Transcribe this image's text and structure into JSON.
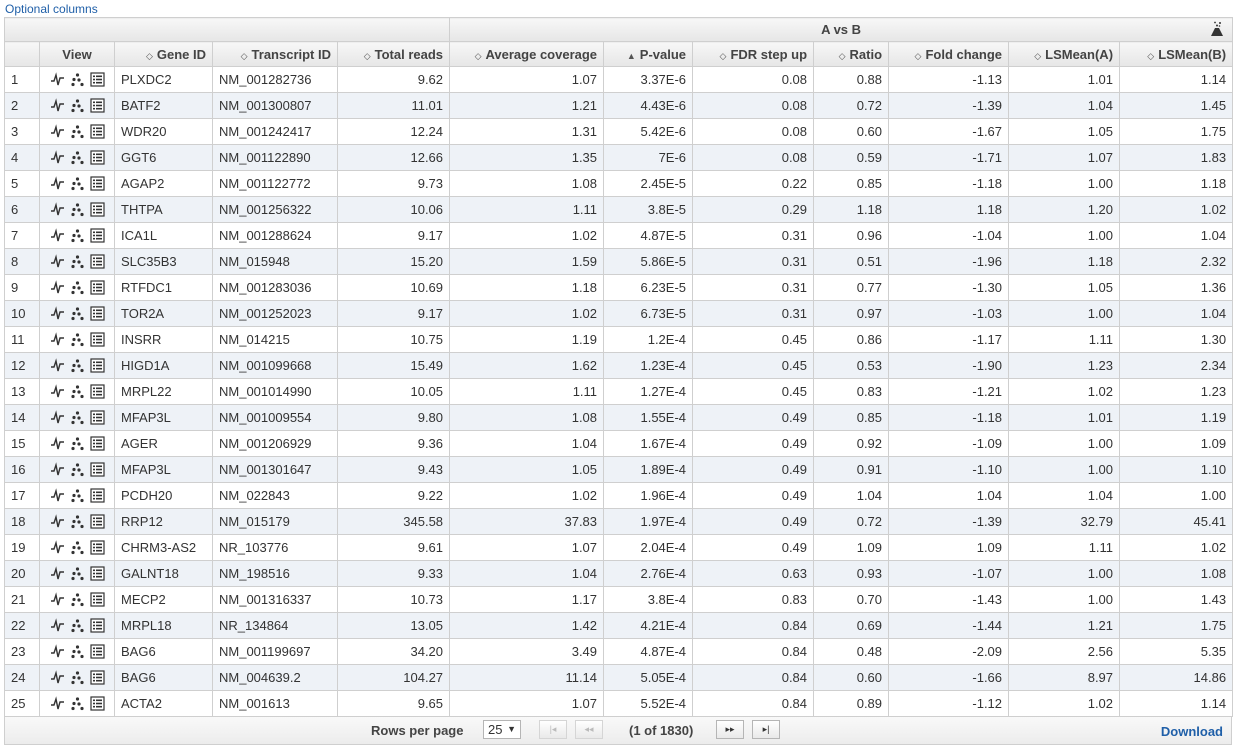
{
  "optional_columns_label": "Optional columns",
  "group_title": "A vs B",
  "columns": {
    "view": "View",
    "gene_id": "Gene ID",
    "transcript_id": "Transcript ID",
    "total_reads": "Total reads",
    "average_coverage": "Average coverage",
    "p_value": "P-value",
    "fdr": "FDR step up",
    "ratio": "Ratio",
    "fold_change": "Fold change",
    "lsmean_a": "LSMean(A)",
    "lsmean_b": "LSMean(B)"
  },
  "sort_glyphs": {
    "unsorted": "◇",
    "asc": "▲"
  },
  "rows": [
    [
      "1",
      "PLXDC2",
      "NM_001282736",
      "9.62",
      "1.07",
      "3.37E-6",
      "0.08",
      "0.88",
      "-1.13",
      "1.01",
      "1.14"
    ],
    [
      "2",
      "BATF2",
      "NM_001300807",
      "11.01",
      "1.21",
      "4.43E-6",
      "0.08",
      "0.72",
      "-1.39",
      "1.04",
      "1.45"
    ],
    [
      "3",
      "WDR20",
      "NM_001242417",
      "12.24",
      "1.31",
      "5.42E-6",
      "0.08",
      "0.60",
      "-1.67",
      "1.05",
      "1.75"
    ],
    [
      "4",
      "GGT6",
      "NM_001122890",
      "12.66",
      "1.35",
      "7E-6",
      "0.08",
      "0.59",
      "-1.71",
      "1.07",
      "1.83"
    ],
    [
      "5",
      "AGAP2",
      "NM_001122772",
      "9.73",
      "1.08",
      "2.45E-5",
      "0.22",
      "0.85",
      "-1.18",
      "1.00",
      "1.18"
    ],
    [
      "6",
      "THTPA",
      "NM_001256322",
      "10.06",
      "1.11",
      "3.8E-5",
      "0.29",
      "1.18",
      "1.18",
      "1.20",
      "1.02"
    ],
    [
      "7",
      "ICA1L",
      "NM_001288624",
      "9.17",
      "1.02",
      "4.87E-5",
      "0.31",
      "0.96",
      "-1.04",
      "1.00",
      "1.04"
    ],
    [
      "8",
      "SLC35B3",
      "NM_015948",
      "15.20",
      "1.59",
      "5.86E-5",
      "0.31",
      "0.51",
      "-1.96",
      "1.18",
      "2.32"
    ],
    [
      "9",
      "RTFDC1",
      "NM_001283036",
      "10.69",
      "1.18",
      "6.23E-5",
      "0.31",
      "0.77",
      "-1.30",
      "1.05",
      "1.36"
    ],
    [
      "10",
      "TOR2A",
      "NM_001252023",
      "9.17",
      "1.02",
      "6.73E-5",
      "0.31",
      "0.97",
      "-1.03",
      "1.00",
      "1.04"
    ],
    [
      "11",
      "INSRR",
      "NM_014215",
      "10.75",
      "1.19",
      "1.2E-4",
      "0.45",
      "0.86",
      "-1.17",
      "1.11",
      "1.30"
    ],
    [
      "12",
      "HIGD1A",
      "NM_001099668",
      "15.49",
      "1.62",
      "1.23E-4",
      "0.45",
      "0.53",
      "-1.90",
      "1.23",
      "2.34"
    ],
    [
      "13",
      "MRPL22",
      "NM_001014990",
      "10.05",
      "1.11",
      "1.27E-4",
      "0.45",
      "0.83",
      "-1.21",
      "1.02",
      "1.23"
    ],
    [
      "14",
      "MFAP3L",
      "NM_001009554",
      "9.80",
      "1.08",
      "1.55E-4",
      "0.49",
      "0.85",
      "-1.18",
      "1.01",
      "1.19"
    ],
    [
      "15",
      "AGER",
      "NM_001206929",
      "9.36",
      "1.04",
      "1.67E-4",
      "0.49",
      "0.92",
      "-1.09",
      "1.00",
      "1.09"
    ],
    [
      "16",
      "MFAP3L",
      "NM_001301647",
      "9.43",
      "1.05",
      "1.89E-4",
      "0.49",
      "0.91",
      "-1.10",
      "1.00",
      "1.10"
    ],
    [
      "17",
      "PCDH20",
      "NM_022843",
      "9.22",
      "1.02",
      "1.96E-4",
      "0.49",
      "1.04",
      "1.04",
      "1.04",
      "1.00"
    ],
    [
      "18",
      "RRP12",
      "NM_015179",
      "345.58",
      "37.83",
      "1.97E-4",
      "0.49",
      "0.72",
      "-1.39",
      "32.79",
      "45.41"
    ],
    [
      "19",
      "CHRM3-AS2",
      "NR_103776",
      "9.61",
      "1.07",
      "2.04E-4",
      "0.49",
      "1.09",
      "1.09",
      "1.11",
      "1.02"
    ],
    [
      "20",
      "GALNT18",
      "NM_198516",
      "9.33",
      "1.04",
      "2.76E-4",
      "0.63",
      "0.93",
      "-1.07",
      "1.00",
      "1.08"
    ],
    [
      "21",
      "MECP2",
      "NM_001316337",
      "10.73",
      "1.17",
      "3.8E-4",
      "0.83",
      "0.70",
      "-1.43",
      "1.00",
      "1.43"
    ],
    [
      "22",
      "MRPL18",
      "NR_134864",
      "13.05",
      "1.42",
      "4.21E-4",
      "0.84",
      "0.69",
      "-1.44",
      "1.21",
      "1.75"
    ],
    [
      "23",
      "BAG6",
      "NM_001199697",
      "34.20",
      "3.49",
      "4.87E-4",
      "0.84",
      "0.48",
      "-2.09",
      "2.56",
      "5.35"
    ],
    [
      "24",
      "BAG6",
      "NM_004639.2",
      "104.27",
      "11.14",
      "5.05E-4",
      "0.84",
      "0.60",
      "-1.66",
      "8.97",
      "14.86"
    ],
    [
      "25",
      "ACTA2",
      "NM_001613",
      "9.65",
      "1.07",
      "5.52E-4",
      "0.84",
      "0.89",
      "-1.12",
      "1.02",
      "1.14"
    ]
  ],
  "footer": {
    "rows_per_page_label": "Rows per page",
    "rows_per_page_value": "25",
    "first_glyph": "|◂",
    "prev_glyph": "◂◂",
    "next_glyph": "▸▸",
    "last_glyph": "▸|",
    "page_info": "(1 of 1830)",
    "download_label": "Download"
  },
  "icons": [
    "volcano-plot-icon",
    "scatter-dots-icon",
    "list-details-icon"
  ]
}
